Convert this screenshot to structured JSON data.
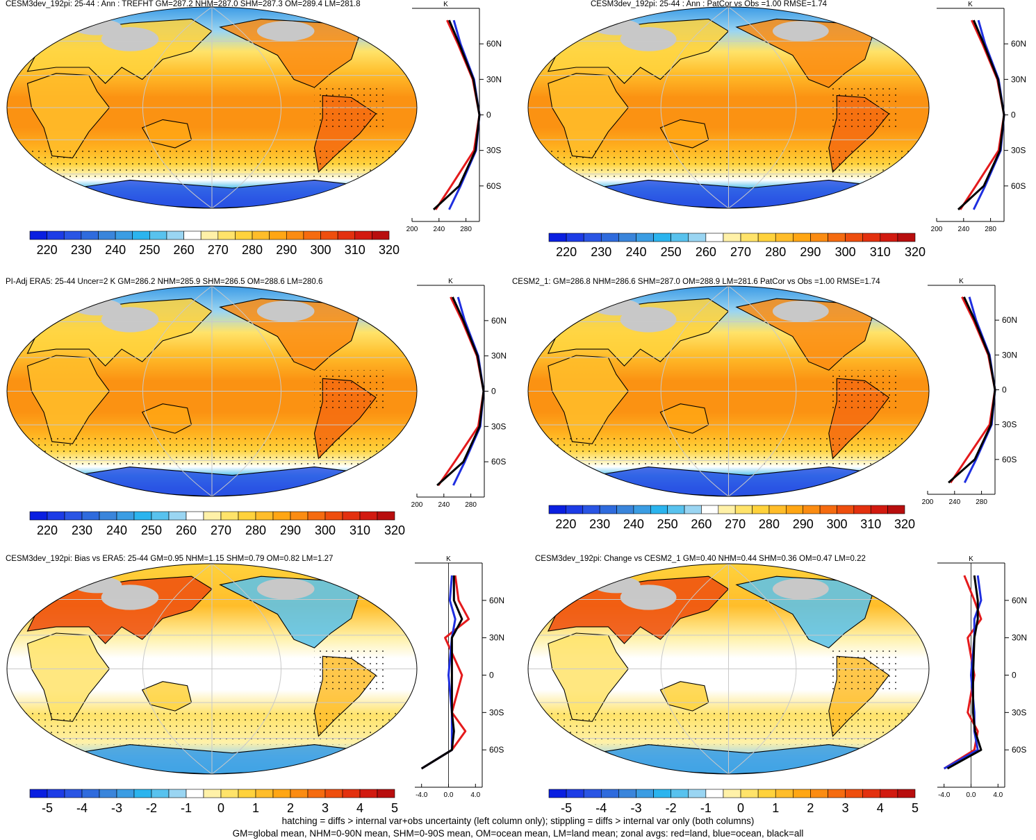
{
  "panels": [
    {
      "title": "CESM3dev_192pi: 25-44 : Ann : TREFHT GM=287.2 NHM=287.0 SHM=287.3 OM=289.4 LM=281.8",
      "kind": "abs",
      "zonal_unit": "K",
      "hatched": true
    },
    {
      "title": "CESM3dev_192pi: 25-44 : Ann : PatCor vs Obs =1.00 RMSE=1.74",
      "kind": "abs",
      "zonal_unit": "K",
      "hatched": false
    },
    {
      "title": "PI-Adj ERA5: 25-44 Uncer=2 K GM=286.2 NHM=285.9 SHM=286.5 OM=288.6 LM=280.6",
      "kind": "abs",
      "zonal_unit": "K",
      "hatched": true
    },
    {
      "title": "CESM2_1: GM=286.8 NHM=286.6 SHM=287.0 OM=288.9 LM=281.6 PatCor vs Obs =1.00 RMSE=1.74",
      "kind": "abs",
      "zonal_unit": "K",
      "hatched": false
    },
    {
      "title": "CESM3dev_192pi: Bias vs ERA5: 25-44 GM=0.95 NHM=1.15 SHM=0.79 OM=0.82 LM=1.27",
      "kind": "diff",
      "zonal_unit": "K",
      "hatched": true
    },
    {
      "title": "CESM3dev_192pi: Change vs CESM2_1 GM=0.40 NHM=0.44 SHM=0.36 OM=0.47 LM=0.22",
      "kind": "diff",
      "zonal_unit": "K",
      "hatched": false
    }
  ],
  "lat_ticks": [
    "60N",
    "30N",
    "0",
    "30S",
    "60S"
  ],
  "colorbar_abs": {
    "labels": [
      "220",
      "230",
      "240",
      "250",
      "260",
      "270",
      "280",
      "290",
      "300",
      "310",
      "320"
    ],
    "colors": [
      "#0a1fe0",
      "#1d3ce6",
      "#2a55e4",
      "#2f6bdd",
      "#3a85db",
      "#3b9de3",
      "#2bb4ee",
      "#58c2ee",
      "#9ad5f2",
      "#ffffff",
      "#fff1a8",
      "#ffe36a",
      "#ffd23c",
      "#ffbd2a",
      "#ffa614",
      "#fb8c12",
      "#f56b10",
      "#ee4e0e",
      "#e3310f",
      "#d21a10",
      "#b80e0e"
    ]
  },
  "colorbar_diff": {
    "labels": [
      "-5",
      "-4",
      "-3",
      "-2",
      "-1",
      "0",
      "1",
      "2",
      "3",
      "4",
      "5"
    ],
    "colors": [
      "#0a1fe0",
      "#1d3ce6",
      "#2a55e4",
      "#2f6bdd",
      "#3a85db",
      "#3b9de3",
      "#2bb4ee",
      "#58c2ee",
      "#9ad5f2",
      "#ffffff",
      "#fff1a8",
      "#ffe36a",
      "#ffd23c",
      "#ffbd2a",
      "#ffa614",
      "#fb8c12",
      "#f56b10",
      "#ee4e0e",
      "#e3310f",
      "#d21a10",
      "#b80e0e"
    ]
  },
  "zonal_abs_xticks": [
    "200",
    "240",
    "280"
  ],
  "zonal_diff_xticks": [
    "-4.0",
    "0.0",
    "4.0"
  ],
  "legend_colors": {
    "land": "#e41a1c",
    "ocean": "#1f2fe0",
    "all": "#000000"
  },
  "footnotes": [
    "hatching = diffs > internal var+obs uncertainty (left column only); stippling = diffs > internal var only (both columns)",
    "GM=global mean, NHM=0-90N mean, SHM=0-90S mean, OM=ocean mean, LM=land mean; zonal avgs: red=land, blue=ocean, black=all"
  ],
  "chart_data": [
    {
      "type": "heatmap",
      "title": "CESM3dev_192pi: 25-44 : Ann : TREFHT",
      "variable": "TREFHT",
      "units": "K",
      "stats": {
        "GM": 287.2,
        "NHM": 287.0,
        "SHM": 287.3,
        "OM": 289.4,
        "LM": 281.8
      },
      "zlim": [
        215,
        325
      ],
      "zonal_mean": {
        "lat": [
          80,
          60,
          30,
          0,
          -30,
          -60,
          -80
        ],
        "land": [
          252,
          268,
          290,
          300,
          292,
          258,
          235
        ],
        "ocean": [
          262,
          272,
          292,
          300,
          295,
          272,
          255
        ],
        "all": [
          255,
          270,
          291,
          300,
          294,
          270,
          232
        ]
      }
    },
    {
      "type": "heatmap",
      "title": "CESM3dev_192pi: 25-44 : Ann",
      "variable": "TREFHT",
      "units": "K",
      "stats": {
        "PatCor": 1.0,
        "RMSE": 1.74
      },
      "zlim": [
        215,
        325
      ],
      "zonal_mean": {
        "lat": [
          80,
          60,
          30,
          0,
          -30,
          -60,
          -80
        ],
        "land": [
          252,
          268,
          290,
          300,
          292,
          258,
          235
        ],
        "ocean": [
          262,
          272,
          292,
          300,
          295,
          272,
          255
        ],
        "all": [
          255,
          270,
          291,
          300,
          294,
          270,
          232
        ]
      }
    },
    {
      "type": "heatmap",
      "title": "PI-Adj ERA5: 25-44",
      "variable": "TREFHT",
      "units": "K",
      "stats": {
        "Uncer": 2,
        "GM": 286.2,
        "NHM": 285.9,
        "SHM": 286.5,
        "OM": 288.6,
        "LM": 280.6
      },
      "zlim": [
        215,
        325
      ],
      "zonal_mean": {
        "lat": [
          80,
          60,
          30,
          0,
          -30,
          -60,
          -80
        ],
        "land": [
          250,
          267,
          289,
          299,
          291,
          256,
          232
        ],
        "ocean": [
          261,
          271,
          291,
          299,
          294,
          271,
          254
        ],
        "all": [
          253,
          269,
          290,
          299,
          293,
          269,
          230
        ]
      }
    },
    {
      "type": "heatmap",
      "title": "CESM2_1",
      "variable": "TREFHT",
      "units": "K",
      "stats": {
        "GM": 286.8,
        "NHM": 286.6,
        "SHM": 287.0,
        "OM": 288.9,
        "LM": 281.6,
        "PatCor": 1.0,
        "RMSE": 1.74
      },
      "zlim": [
        215,
        325
      ],
      "zonal_mean": {
        "lat": [
          80,
          60,
          30,
          0,
          -30,
          -60,
          -80
        ],
        "land": [
          251,
          268,
          290,
          300,
          292,
          257,
          234
        ],
        "ocean": [
          262,
          272,
          292,
          300,
          295,
          272,
          255
        ],
        "all": [
          254,
          270,
          291,
          300,
          294,
          270,
          231
        ]
      }
    },
    {
      "type": "heatmap",
      "title": "CESM3dev_192pi: Bias vs ERA5: 25-44",
      "variable": "TREFHT bias",
      "units": "K",
      "stats": {
        "GM": 0.95,
        "NHM": 1.15,
        "SHM": 0.79,
        "OM": 0.82,
        "LM": 1.27
      },
      "zlim": [
        -5.5,
        5.5
      ],
      "zonal_mean": {
        "lat": [
          80,
          60,
          45,
          30,
          0,
          -30,
          -45,
          -60,
          -75
        ],
        "land": [
          1.0,
          1.5,
          3.0,
          -0.5,
          2.0,
          0.5,
          2.5,
          0.5,
          -4.0
        ],
        "ocean": [
          0.5,
          0.2,
          1.0,
          0.5,
          0.0,
          0.5,
          0.5,
          0.5,
          -4.0
        ],
        "all": [
          0.8,
          0.8,
          2.0,
          0.5,
          0.5,
          0.5,
          0.8,
          0.5,
          -4.0
        ]
      }
    },
    {
      "type": "heatmap",
      "title": "CESM3dev_192pi: Change vs CESM2_1",
      "variable": "TREFHT change",
      "units": "K",
      "stats": {
        "GM": 0.4,
        "NHM": 0.44,
        "SHM": 0.36,
        "OM": 0.47,
        "LM": 0.22
      },
      "zlim": [
        -5.5,
        5.5
      ],
      "zonal_mean": {
        "lat": [
          80,
          60,
          45,
          30,
          0,
          -30,
          -45,
          -60,
          -75
        ],
        "land": [
          -1.0,
          0.5,
          1.5,
          -0.5,
          0.5,
          -0.5,
          1.0,
          0.5,
          -4.0
        ],
        "ocean": [
          1.0,
          1.5,
          0.5,
          0.5,
          0.0,
          0.5,
          0.5,
          1.0,
          -4.0
        ],
        "all": [
          0.5,
          1.0,
          1.0,
          0.5,
          0.3,
          0.3,
          0.6,
          1.5,
          -3.5
        ]
      }
    }
  ]
}
